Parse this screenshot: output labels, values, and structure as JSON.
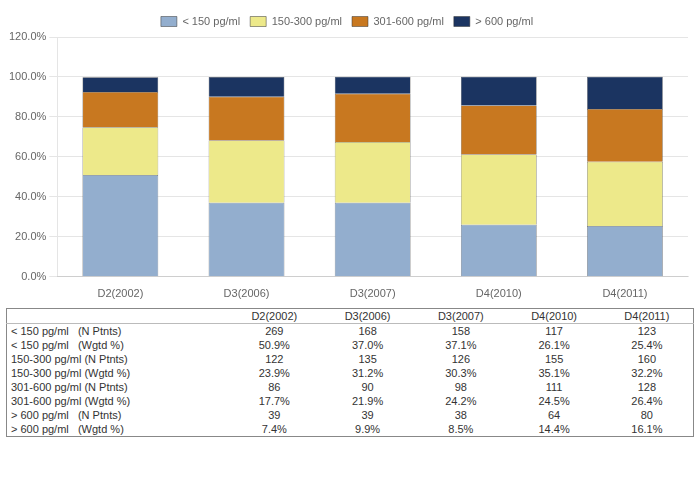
{
  "chart_data": {
    "type": "bar",
    "stacked": true,
    "categories": [
      "D2(2002)",
      "D3(2006)",
      "D3(2007)",
      "D4(2010)",
      "D4(2011)"
    ],
    "series": [
      {
        "name": "< 150 pg/ml",
        "color": "#93AECE",
        "values": [
          50.9,
          37.0,
          37.1,
          26.1,
          25.4
        ]
      },
      {
        "name": "150-300 pg/ml",
        "color": "#EDE98A",
        "values": [
          23.9,
          31.2,
          30.3,
          35.1,
          32.2
        ]
      },
      {
        "name": "301-600 pg/ml",
        "color": "#C87820",
        "values": [
          17.7,
          21.9,
          24.2,
          24.5,
          26.4
        ]
      },
      {
        "name": "> 600 pg/ml",
        "color": "#1B3461",
        "values": [
          7.4,
          9.9,
          8.5,
          14.4,
          16.1
        ]
      }
    ],
    "ylim": [
      0,
      120
    ],
    "yticks": [
      {
        "value": 0,
        "label": "0.0%"
      },
      {
        "value": 20,
        "label": "20.0%"
      },
      {
        "value": 40,
        "label": "40.0%"
      },
      {
        "value": 60,
        "label": "60.0%"
      },
      {
        "value": 80,
        "label": "80.0%"
      },
      {
        "value": 100,
        "label": "100.0%"
      },
      {
        "value": 120,
        "label": "120.0%"
      }
    ],
    "grid": true,
    "legend": "top",
    "table": {
      "rows": [
        {
          "label": "< 150 pg/ml   (N Ptnts)",
          "values": [
            "269",
            "168",
            "158",
            "117",
            "123"
          ]
        },
        {
          "label": "< 150 pg/ml   (Wgtd %)",
          "values": [
            "50.9%",
            "37.0%",
            "37.1%",
            "26.1%",
            "25.4%"
          ]
        },
        {
          "label": "150-300 pg/ml (N Ptnts)",
          "values": [
            "122",
            "135",
            "126",
            "155",
            "160"
          ]
        },
        {
          "label": "150-300 pg/ml (Wgtd %)",
          "values": [
            "23.9%",
            "31.2%",
            "30.3%",
            "35.1%",
            "32.2%"
          ]
        },
        {
          "label": "301-600 pg/ml (N Ptnts)",
          "values": [
            "86",
            "90",
            "98",
            "111",
            "128"
          ]
        },
        {
          "label": "301-600 pg/ml (Wgtd %)",
          "values": [
            "17.7%",
            "21.9%",
            "24.2%",
            "24.5%",
            "26.4%"
          ]
        },
        {
          "label": "> 600 pg/ml   (N Ptnts)",
          "values": [
            "39",
            "39",
            "38",
            "64",
            "80"
          ]
        },
        {
          "label": "> 600 pg/ml   (Wgtd %)",
          "values": [
            "7.4%",
            "9.9%",
            "8.5%",
            "14.4%",
            "16.1%"
          ]
        }
      ]
    }
  }
}
